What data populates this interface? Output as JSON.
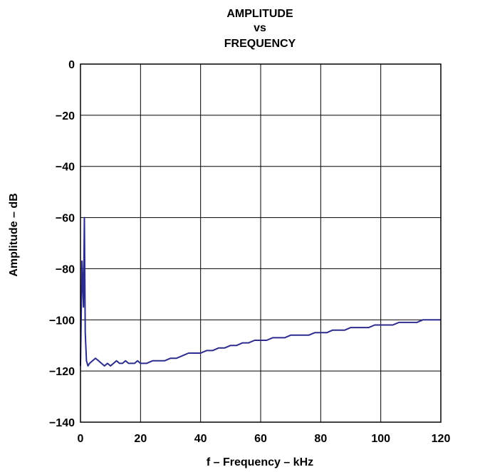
{
  "chart_data": {
    "type": "line",
    "title": [
      "AMPLITUDE",
      "vs",
      "FREQUENCY"
    ],
    "xlabel": "f – Frequency – kHz",
    "ylabel": "Amplitude – dB",
    "xlim": [
      0,
      120
    ],
    "ylim": [
      -140,
      0
    ],
    "x_ticks": [
      0,
      20,
      40,
      60,
      80,
      100,
      120
    ],
    "y_ticks": [
      0,
      -20,
      -40,
      -60,
      -80,
      -100,
      -120,
      -140
    ],
    "x_tick_labels": [
      "0",
      "20",
      "40",
      "60",
      "80",
      "100",
      "120"
    ],
    "y_tick_labels": [
      "0",
      "−20",
      "−40",
      "−60",
      "−80",
      "−100",
      "−120",
      "−140"
    ],
    "grid": true,
    "legend": "none",
    "series_color": "#2b2c8c",
    "series": [
      {
        "x": [
          0,
          0.5,
          1,
          1.3,
          1.6,
          2,
          2.5,
          3,
          4,
          5,
          6,
          7,
          8,
          9,
          10,
          11,
          12,
          13,
          14,
          15,
          16,
          17,
          18,
          19,
          20,
          22,
          24,
          26,
          28,
          30,
          32,
          34,
          36,
          38,
          40,
          42,
          44,
          46,
          48,
          50,
          52,
          54,
          56,
          58,
          60,
          62,
          64,
          66,
          68,
          70,
          72,
          74,
          76,
          78,
          80,
          82,
          84,
          86,
          88,
          90,
          92,
          94,
          96,
          98,
          100,
          102,
          104,
          106,
          108,
          110,
          112,
          114,
          116,
          118,
          120
        ],
        "values": [
          -118,
          -77,
          -95,
          -60,
          -105,
          -116,
          -118,
          -117,
          -116,
          -115,
          -116,
          -117,
          -118,
          -117,
          -118,
          -117,
          -116,
          -117,
          -117,
          -116,
          -117,
          -117,
          -117,
          -116,
          -117,
          -117,
          -116,
          -116,
          -116,
          -115,
          -115,
          -114,
          -113,
          -113,
          -113,
          -112,
          -112,
          -111,
          -111,
          -110,
          -110,
          -109,
          -109,
          -108,
          -108,
          -108,
          -107,
          -107,
          -107,
          -106,
          -106,
          -106,
          -106,
          -105,
          -105,
          -105,
          -104,
          -104,
          -104,
          -103,
          -103,
          -103,
          -103,
          -102,
          -102,
          -102,
          -102,
          -101,
          -101,
          -101,
          -101,
          -100,
          -100,
          -100,
          -100
        ]
      }
    ]
  }
}
